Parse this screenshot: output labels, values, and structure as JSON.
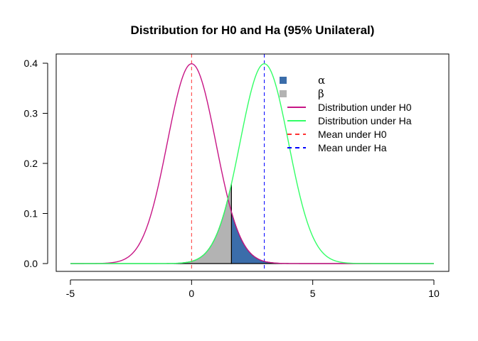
{
  "chart_data": {
    "type": "line",
    "title": "Distribution for H0 and Ha (95% Unilateral)",
    "xlabel": "",
    "ylabel": "",
    "xlim": [
      -5,
      10
    ],
    "ylim": [
      0,
      0.4
    ],
    "x_ticks": [
      -5,
      0,
      5,
      10
    ],
    "x_tick_labels": [
      "-5",
      "0",
      "5",
      "10"
    ],
    "y_ticks": [
      0.0,
      0.1,
      0.2,
      0.3,
      0.4
    ],
    "y_tick_labels": [
      "0.0",
      "0.1",
      "0.2",
      "0.3",
      "0.4"
    ],
    "grid": false,
    "legend_position": "top-right",
    "series": [
      {
        "name": "Distribution under H0",
        "distribution": "normal",
        "mean": 0,
        "sd": 1,
        "x_range": [
          -5,
          10
        ],
        "color": "#C71585"
      },
      {
        "name": "Distribution under Ha",
        "distribution": "normal",
        "mean": 3,
        "sd": 1,
        "x_range": [
          -5,
          10
        ],
        "color": "#33FF66"
      }
    ],
    "shaded_regions": [
      {
        "name": "α",
        "under": "Distribution under H0",
        "from": 1.645,
        "to": 10,
        "color": "#3B6DAA"
      },
      {
        "name": "β",
        "under": "Distribution under Ha",
        "from": -5,
        "to": 1.645,
        "color": "#B3B3B3"
      }
    ],
    "critical_value": 1.645,
    "reference_lines": [
      {
        "name": "Mean under H0",
        "x": 0,
        "color": "#FF3333",
        "style": "dashed"
      },
      {
        "name": "Mean under Ha",
        "x": 3,
        "color": "#0000FF",
        "style": "dashed"
      }
    ],
    "legend": [
      {
        "label": "α",
        "kind": "box",
        "color": "#3B6DAA"
      },
      {
        "label": "β",
        "kind": "box",
        "color": "#B3B3B3"
      },
      {
        "label": "Distribution under H0",
        "kind": "solid",
        "color": "#C71585"
      },
      {
        "label": "Distribution under Ha",
        "kind": "solid",
        "color": "#33FF66"
      },
      {
        "label": "Mean under H0",
        "kind": "dashed",
        "color": "#FF3333"
      },
      {
        "label": "Mean under Ha",
        "kind": "dashed",
        "color": "#0000FF"
      }
    ]
  }
}
